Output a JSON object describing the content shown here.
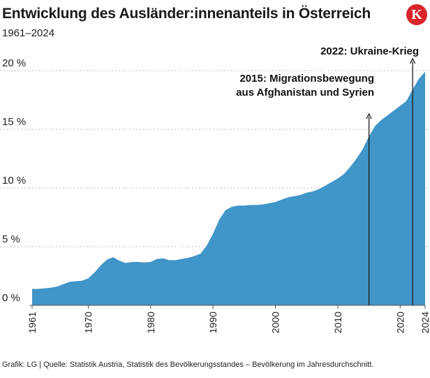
{
  "header": {
    "title": "Entwicklung des Ausländer:innenanteils in Österreich",
    "subtitle": "1961–2024",
    "logo_letter": "K"
  },
  "footer": {
    "source": "Grafik: LG | Quelle: Statistik Austria, Statistik des Bevölkerungsstandes – Bevölkerung im Jahresdurchschnitt."
  },
  "colors": {
    "area": "#4095c9",
    "grid": "#bdbdbd",
    "annotation_line": "#1a1a1a",
    "logo": "#d9252a"
  },
  "chart_data": {
    "type": "area",
    "title": "Entwicklung des Ausländer:innenanteils in Österreich",
    "subtitle": "1961–2024",
    "xlabel": "",
    "ylabel": "",
    "xlim": [
      1961,
      2024
    ],
    "ylim": [
      0,
      20
    ],
    "y_ticks": [
      0,
      5,
      10,
      15,
      20
    ],
    "y_tick_labels": [
      "0 %",
      "5 %",
      "10 %",
      "15 %",
      "20 %"
    ],
    "x_ticks": [
      1961,
      1970,
      1980,
      1990,
      2000,
      2010,
      2020,
      2024
    ],
    "x_tick_labels": [
      "1961",
      "1970",
      "1980",
      "1990",
      "2000",
      "2010",
      "2020",
      "2024"
    ],
    "grid": "horizontal dotted",
    "series": [
      {
        "name": "Ausländer:innenanteil (%)",
        "x": [
          1961,
          1962,
          1963,
          1964,
          1965,
          1966,
          1967,
          1968,
          1969,
          1970,
          1971,
          1972,
          1973,
          1974,
          1975,
          1976,
          1977,
          1978,
          1979,
          1980,
          1981,
          1982,
          1983,
          1984,
          1985,
          1986,
          1987,
          1988,
          1989,
          1990,
          1991,
          1992,
          1993,
          1994,
          1995,
          1996,
          1997,
          1998,
          1999,
          2000,
          2001,
          2002,
          2003,
          2004,
          2005,
          2006,
          2007,
          2008,
          2009,
          2010,
          2011,
          2012,
          2013,
          2014,
          2015,
          2016,
          2017,
          2018,
          2019,
          2020,
          2021,
          2022,
          2023,
          2024
        ],
        "values": [
          1.4,
          1.4,
          1.45,
          1.5,
          1.6,
          1.8,
          2.0,
          2.05,
          2.1,
          2.3,
          2.8,
          3.4,
          3.9,
          4.1,
          3.8,
          3.6,
          3.7,
          3.7,
          3.65,
          3.7,
          3.95,
          4.0,
          3.85,
          3.85,
          3.95,
          4.05,
          4.2,
          4.4,
          5.1,
          6.1,
          7.3,
          8.1,
          8.4,
          8.5,
          8.5,
          8.55,
          8.55,
          8.6,
          8.7,
          8.8,
          9.0,
          9.2,
          9.3,
          9.4,
          9.6,
          9.7,
          9.9,
          10.2,
          10.5,
          10.8,
          11.2,
          11.8,
          12.5,
          13.3,
          14.4,
          15.3,
          15.8,
          16.2,
          16.6,
          17.0,
          17.4,
          18.4,
          19.3,
          19.9
        ]
      }
    ],
    "annotations": [
      {
        "year": 2015,
        "value": 14.4,
        "lines": [
          "2015: Migrationsbewegung",
          "aus Afghanistan und Syrien"
        ]
      },
      {
        "year": 2022,
        "value": 18.4,
        "lines": [
          "2022: Ukraine-Krieg"
        ]
      }
    ]
  }
}
